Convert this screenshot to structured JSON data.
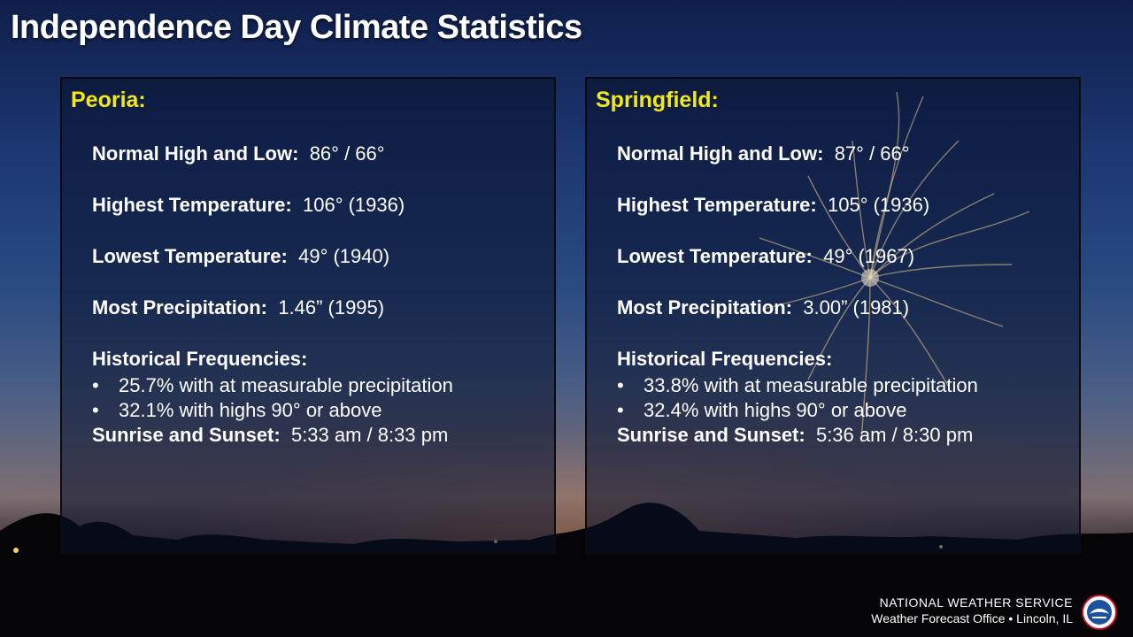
{
  "title": "Independence Day Climate Statistics",
  "panels": [
    {
      "city": "Peoria:",
      "normal_label": "Normal High and Low:",
      "normal_value": "86° / 66°",
      "highest_label": "Highest Temperature:",
      "highest_value": "106°  (1936)",
      "lowest_label": "Lowest Temperature:",
      "lowest_value": "49°  (1940)",
      "precip_label": "Most Precipitation:",
      "precip_value": "1.46” (1995)",
      "freq_label": "Historical Frequencies:",
      "freq_items": [
        "25.7% with at measurable precipitation",
        "32.1% with highs 90° or above"
      ],
      "sun_label": "Sunrise and Sunset:",
      "sun_value": "5:33 am / 8:33 pm"
    },
    {
      "city": "Springfield:",
      "normal_label": "Normal High and Low:",
      "normal_value": "87° / 66°",
      "highest_label": "Highest Temperature:",
      "highest_value": "105° (1936)",
      "lowest_label": "Lowest Temperature:",
      "lowest_value": "49°  (1967)",
      "precip_label": "Most Precipitation:",
      "precip_value": "3.00” (1981)",
      "freq_label": "Historical Frequencies:",
      "freq_items": [
        "33.8% with at measurable precipitation",
        "32.4% with highs 90° or above"
      ],
      "sun_label": "Sunrise and Sunset:",
      "sun_value": "5:36 am / 8:30 pm"
    }
  ],
  "bullet_char": "•",
  "footer": {
    "org": "NATIONAL WEATHER SERVICE",
    "office": "Weather Forecast Office • Lincoln, IL"
  },
  "colors": {
    "city": "#f2e81a",
    "panel_bg": "rgba(8,14,40,0.55)"
  }
}
